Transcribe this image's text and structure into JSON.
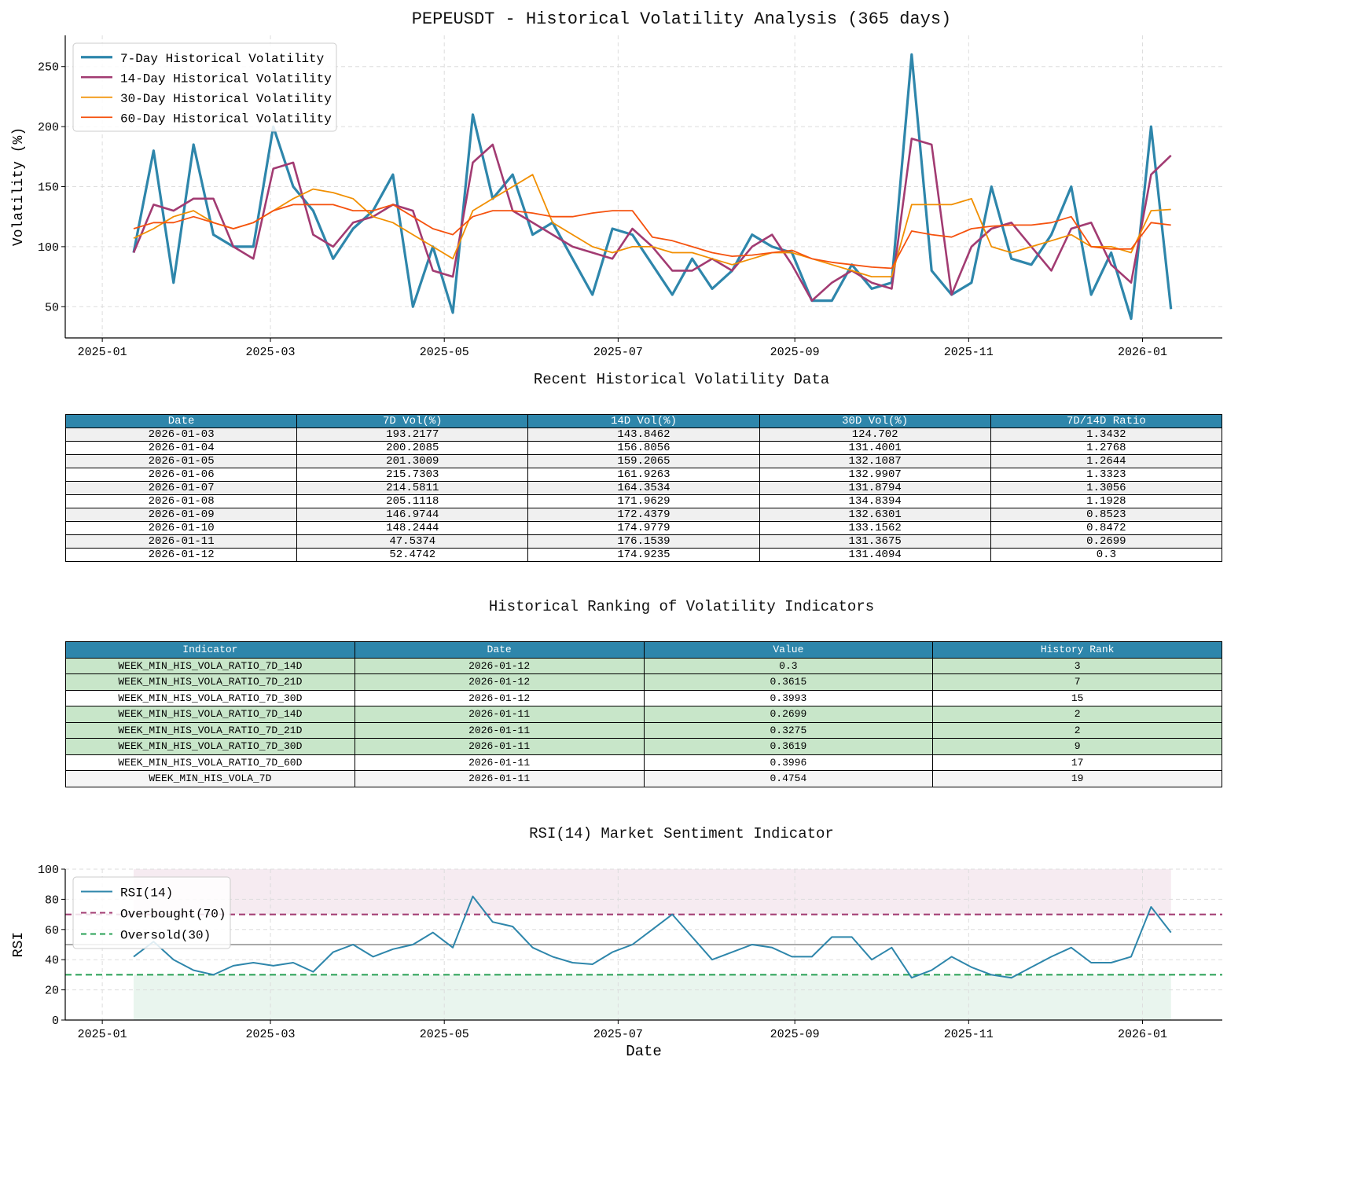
{
  "chart_data": [
    {
      "type": "line",
      "title": "PEPEUSDT - Historical Volatility Analysis (365 days)",
      "xlabel": "",
      "ylabel": "Volatility (%)",
      "ylim": [
        24,
        276
      ],
      "xlim": [
        "2024-12-19",
        "2026-01-29"
      ],
      "x_ticks": [
        "2025-01",
        "2025-03",
        "2025-05",
        "2025-07",
        "2025-09",
        "2025-11",
        "2026-01"
      ],
      "y_ticks": [
        50,
        100,
        150,
        200,
        250
      ],
      "grid": true,
      "legend": "top-left",
      "x": [
        "2025-01-12",
        "2025-01-19",
        "2025-01-26",
        "2025-02-02",
        "2025-02-09",
        "2025-02-16",
        "2025-02-23",
        "2025-03-02",
        "2025-03-09",
        "2025-03-16",
        "2025-03-23",
        "2025-03-30",
        "2025-04-06",
        "2025-04-13",
        "2025-04-20",
        "2025-04-27",
        "2025-05-04",
        "2025-05-11",
        "2025-05-18",
        "2025-05-25",
        "2025-06-01",
        "2025-06-08",
        "2025-06-15",
        "2025-06-22",
        "2025-06-29",
        "2025-07-06",
        "2025-07-13",
        "2025-07-20",
        "2025-07-27",
        "2025-08-03",
        "2025-08-10",
        "2025-08-17",
        "2025-08-24",
        "2025-08-31",
        "2025-09-07",
        "2025-09-14",
        "2025-09-21",
        "2025-09-28",
        "2025-10-05",
        "2025-10-12",
        "2025-10-19",
        "2025-10-26",
        "2025-11-02",
        "2025-11-09",
        "2025-11-16",
        "2025-11-23",
        "2025-11-30",
        "2025-12-07",
        "2025-12-14",
        "2025-12-21",
        "2025-12-28",
        "2026-01-04",
        "2026-01-11"
      ],
      "series": [
        {
          "name": "7-Day Historical Volatility",
          "color": "#2e86ab",
          "values": [
            95,
            180,
            70,
            185,
            110,
            100,
            100,
            200,
            150,
            130,
            90,
            115,
            130,
            160,
            50,
            100,
            45,
            210,
            140,
            160,
            110,
            120,
            90,
            60,
            115,
            110,
            85,
            60,
            90,
            65,
            80,
            110,
            100,
            95,
            55,
            55,
            85,
            65,
            70,
            260,
            80,
            60,
            70,
            150,
            90,
            85,
            110,
            150,
            60,
            95,
            40,
            200,
            48
          ]
        },
        {
          "name": "14-Day Historical Volatility",
          "color": "#a23b72",
          "values": [
            95,
            135,
            130,
            140,
            140,
            100,
            90,
            165,
            170,
            110,
            100,
            120,
            125,
            135,
            130,
            80,
            75,
            170,
            185,
            130,
            120,
            110,
            100,
            95,
            90,
            115,
            100,
            80,
            80,
            90,
            80,
            100,
            110,
            85,
            55,
            70,
            80,
            70,
            65,
            190,
            185,
            60,
            100,
            115,
            120,
            100,
            80,
            115,
            120,
            85,
            70,
            160,
            176
          ]
        },
        {
          "name": "30-Day Historical Volatility",
          "color": "#f18f01",
          "values": [
            107,
            115,
            125,
            130,
            120,
            115,
            120,
            130,
            140,
            148,
            145,
            140,
            125,
            120,
            110,
            100,
            90,
            130,
            140,
            150,
            160,
            120,
            110,
            100,
            95,
            100,
            100,
            95,
            95,
            90,
            85,
            90,
            95,
            95,
            90,
            85,
            80,
            75,
            75,
            135,
            135,
            135,
            140,
            100,
            95,
            100,
            105,
            110,
            100,
            100,
            95,
            130,
            131
          ]
        },
        {
          "name": "60-Day Historical Volatility",
          "color": "#f5520e",
          "values": [
            115,
            120,
            120,
            125,
            120,
            115,
            120,
            130,
            135,
            135,
            135,
            130,
            130,
            135,
            125,
            115,
            110,
            125,
            130,
            130,
            128,
            125,
            125,
            128,
            130,
            130,
            108,
            105,
            100,
            95,
            92,
            93,
            95,
            97,
            90,
            87,
            85,
            83,
            82,
            113,
            110,
            108,
            115,
            117,
            118,
            118,
            120,
            125,
            100,
            98,
            98,
            120,
            118
          ]
        }
      ]
    },
    {
      "type": "line",
      "title": "RSI(14) Market Sentiment Indicator",
      "xlabel": "Date",
      "ylabel": "RSI",
      "ylim": [
        0,
        100
      ],
      "xlim": [
        "2024-12-19",
        "2026-01-29"
      ],
      "x_ticks": [
        "2025-01",
        "2025-03",
        "2025-05",
        "2025-07",
        "2025-09",
        "2025-11",
        "2026-01"
      ],
      "y_ticks": [
        0,
        20,
        40,
        60,
        80,
        100
      ],
      "grid": true,
      "legend": "top-left",
      "x": [
        "2025-01-12",
        "2025-01-19",
        "2025-01-26",
        "2025-02-02",
        "2025-02-09",
        "2025-02-16",
        "2025-02-23",
        "2025-03-02",
        "2025-03-09",
        "2025-03-16",
        "2025-03-23",
        "2025-03-30",
        "2025-04-06",
        "2025-04-13",
        "2025-04-20",
        "2025-04-27",
        "2025-05-04",
        "2025-05-11",
        "2025-05-18",
        "2025-05-25",
        "2025-06-01",
        "2025-06-08",
        "2025-06-15",
        "2025-06-22",
        "2025-06-29",
        "2025-07-06",
        "2025-07-13",
        "2025-07-20",
        "2025-07-27",
        "2025-08-03",
        "2025-08-10",
        "2025-08-17",
        "2025-08-24",
        "2025-08-31",
        "2025-09-07",
        "2025-09-14",
        "2025-09-21",
        "2025-09-28",
        "2025-10-05",
        "2025-10-12",
        "2025-10-19",
        "2025-10-26",
        "2025-11-02",
        "2025-11-09",
        "2025-11-16",
        "2025-11-23",
        "2025-11-30",
        "2025-12-07",
        "2025-12-14",
        "2025-12-21",
        "2025-12-28",
        "2026-01-04",
        "2026-01-11"
      ],
      "series": [
        {
          "name": "RSI(14)",
          "color": "#2e86ab",
          "values": [
            42,
            52,
            40,
            33,
            30,
            36,
            38,
            36,
            38,
            32,
            45,
            50,
            42,
            47,
            50,
            58,
            48,
            82,
            65,
            62,
            48,
            42,
            38,
            37,
            45,
            50,
            60,
            70,
            55,
            40,
            45,
            50,
            48,
            42,
            42,
            55,
            55,
            40,
            48,
            28,
            33,
            42,
            35,
            30,
            28,
            35,
            42,
            48,
            38,
            38,
            42,
            75,
            58
          ]
        }
      ],
      "reference_lines": [
        {
          "name": "Overbought(70)",
          "value": 70,
          "color": "#a23b72",
          "style": "dashed"
        },
        {
          "name": "Oversold(30)",
          "value": 30,
          "color": "#27a055",
          "style": "dashed"
        },
        {
          "value": 50,
          "color": "#aaaaaa",
          "style": "solid"
        }
      ],
      "shaded_bands": [
        {
          "from": 70,
          "to": 100,
          "color": "#a23b72"
        },
        {
          "from": 0,
          "to": 30,
          "color": "#27a055"
        }
      ]
    }
  ],
  "table1": {
    "title": "Recent Historical Volatility Data",
    "header_color": "#2e86ab",
    "columns": [
      "Date",
      "7D Vol(%)",
      "14D Vol(%)",
      "30D Vol(%)",
      "7D/14D Ratio"
    ],
    "rows": [
      [
        "2026-01-03",
        "193.2177",
        "143.8462",
        "124.702",
        "1.3432"
      ],
      [
        "2026-01-04",
        "200.2085",
        "156.8056",
        "131.4001",
        "1.2768"
      ],
      [
        "2026-01-05",
        "201.3009",
        "159.2065",
        "132.1087",
        "1.2644"
      ],
      [
        "2026-01-06",
        "215.7303",
        "161.9263",
        "132.9907",
        "1.3323"
      ],
      [
        "2026-01-07",
        "214.5811",
        "164.3534",
        "131.8794",
        "1.3056"
      ],
      [
        "2026-01-08",
        "205.1118",
        "171.9629",
        "134.8394",
        "1.1928"
      ],
      [
        "2026-01-09",
        "146.9744",
        "172.4379",
        "132.6301",
        "0.8523"
      ],
      [
        "2026-01-10",
        "148.2444",
        "174.9779",
        "133.1562",
        "0.8472"
      ],
      [
        "2026-01-11",
        "47.5374",
        "176.1539",
        "131.3675",
        "0.2699"
      ],
      [
        "2026-01-12",
        "52.4742",
        "174.9235",
        "131.4094",
        "0.3"
      ]
    ]
  },
  "table2": {
    "title": "Historical Ranking of Volatility Indicators",
    "highlight_color": "#c8e6c9",
    "columns": [
      "Indicator",
      "Date",
      "Value",
      "History Rank"
    ],
    "rows": [
      {
        "cells": [
          "WEEK_MIN_HIS_VOLA_RATIO_7D_14D",
          "2026-01-12",
          "0.3",
          "3"
        ],
        "highlight": true
      },
      {
        "cells": [
          "WEEK_MIN_HIS_VOLA_RATIO_7D_21D",
          "2026-01-12",
          "0.3615",
          "7"
        ],
        "highlight": true
      },
      {
        "cells": [
          "WEEK_MIN_HIS_VOLA_RATIO_7D_30D",
          "2026-01-12",
          "0.3993",
          "15"
        ],
        "highlight": false
      },
      {
        "cells": [
          "WEEK_MIN_HIS_VOLA_RATIO_7D_14D",
          "2026-01-11",
          "0.2699",
          "2"
        ],
        "highlight": true
      },
      {
        "cells": [
          "WEEK_MIN_HIS_VOLA_RATIO_7D_21D",
          "2026-01-11",
          "0.3275",
          "2"
        ],
        "highlight": true
      },
      {
        "cells": [
          "WEEK_MIN_HIS_VOLA_RATIO_7D_30D",
          "2026-01-11",
          "0.3619",
          "9"
        ],
        "highlight": true
      },
      {
        "cells": [
          "WEEK_MIN_HIS_VOLA_RATIO_7D_60D",
          "2026-01-11",
          "0.3996",
          "17"
        ],
        "highlight": false
      },
      {
        "cells": [
          "WEEK_MIN_HIS_VOLA_7D",
          "2026-01-11",
          "0.4754",
          "19"
        ],
        "highlight": false
      }
    ]
  }
}
